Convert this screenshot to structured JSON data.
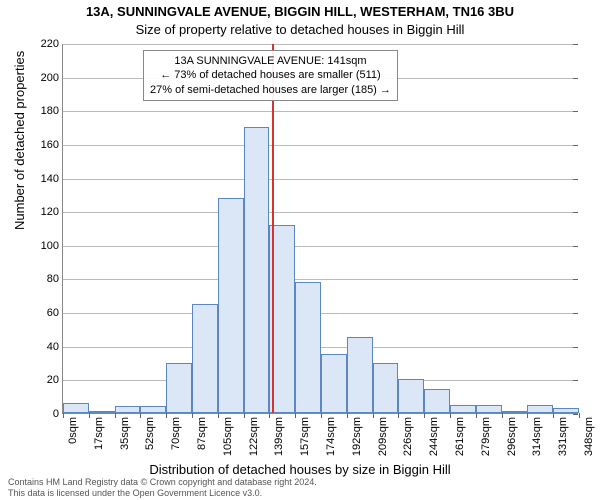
{
  "title": "13A, SUNNINGVALE AVENUE, BIGGIN HILL, WESTERHAM, TN16 3BU",
  "subtitle": "Size of property relative to detached houses in Biggin Hill",
  "y_axis": {
    "label": "Number of detached properties",
    "min": 0,
    "max": 220,
    "step": 20
  },
  "x_axis": {
    "label": "Distribution of detached houses by size in Biggin Hill",
    "tick_labels": [
      "0sqm",
      "17sqm",
      "35sqm",
      "52sqm",
      "70sqm",
      "87sqm",
      "105sqm",
      "122sqm",
      "139sqm",
      "157sqm",
      "174sqm",
      "192sqm",
      "209sqm",
      "226sqm",
      "244sqm",
      "261sqm",
      "279sqm",
      "296sqm",
      "314sqm",
      "331sqm",
      "348sqm"
    ]
  },
  "histogram": {
    "type": "histogram",
    "bin_count": 20,
    "values": [
      6,
      0,
      4,
      4,
      30,
      65,
      128,
      170,
      112,
      78,
      35,
      45,
      30,
      20,
      14,
      5,
      5,
      0,
      5,
      3
    ],
    "bar_fill": "#dbe7f6",
    "bar_border": "#5b87c4",
    "grid_color": "#bbbbbb",
    "axis_color": "#888888"
  },
  "reference": {
    "value_sqm": 141,
    "max_sqm": 348,
    "line_color": "#d33333"
  },
  "annotation": {
    "lines": [
      "13A SUNNINGVALE AVENUE: 141sqm",
      "← 73% of detached houses are smaller (511)",
      "27% of semi-detached houses are larger (185) →"
    ]
  },
  "footer": {
    "line1": "Contains HM Land Registry data © Crown copyright and database right 2024.",
    "line2": "This data is licensed under the Open Government Licence v3.0."
  },
  "colors": {
    "text": "#000000",
    "footer_text": "#555555",
    "background": "#ffffff"
  },
  "fontsize": {
    "title": 13,
    "axis_label": 13,
    "tick": 11,
    "annotation": 11,
    "footer": 9
  }
}
